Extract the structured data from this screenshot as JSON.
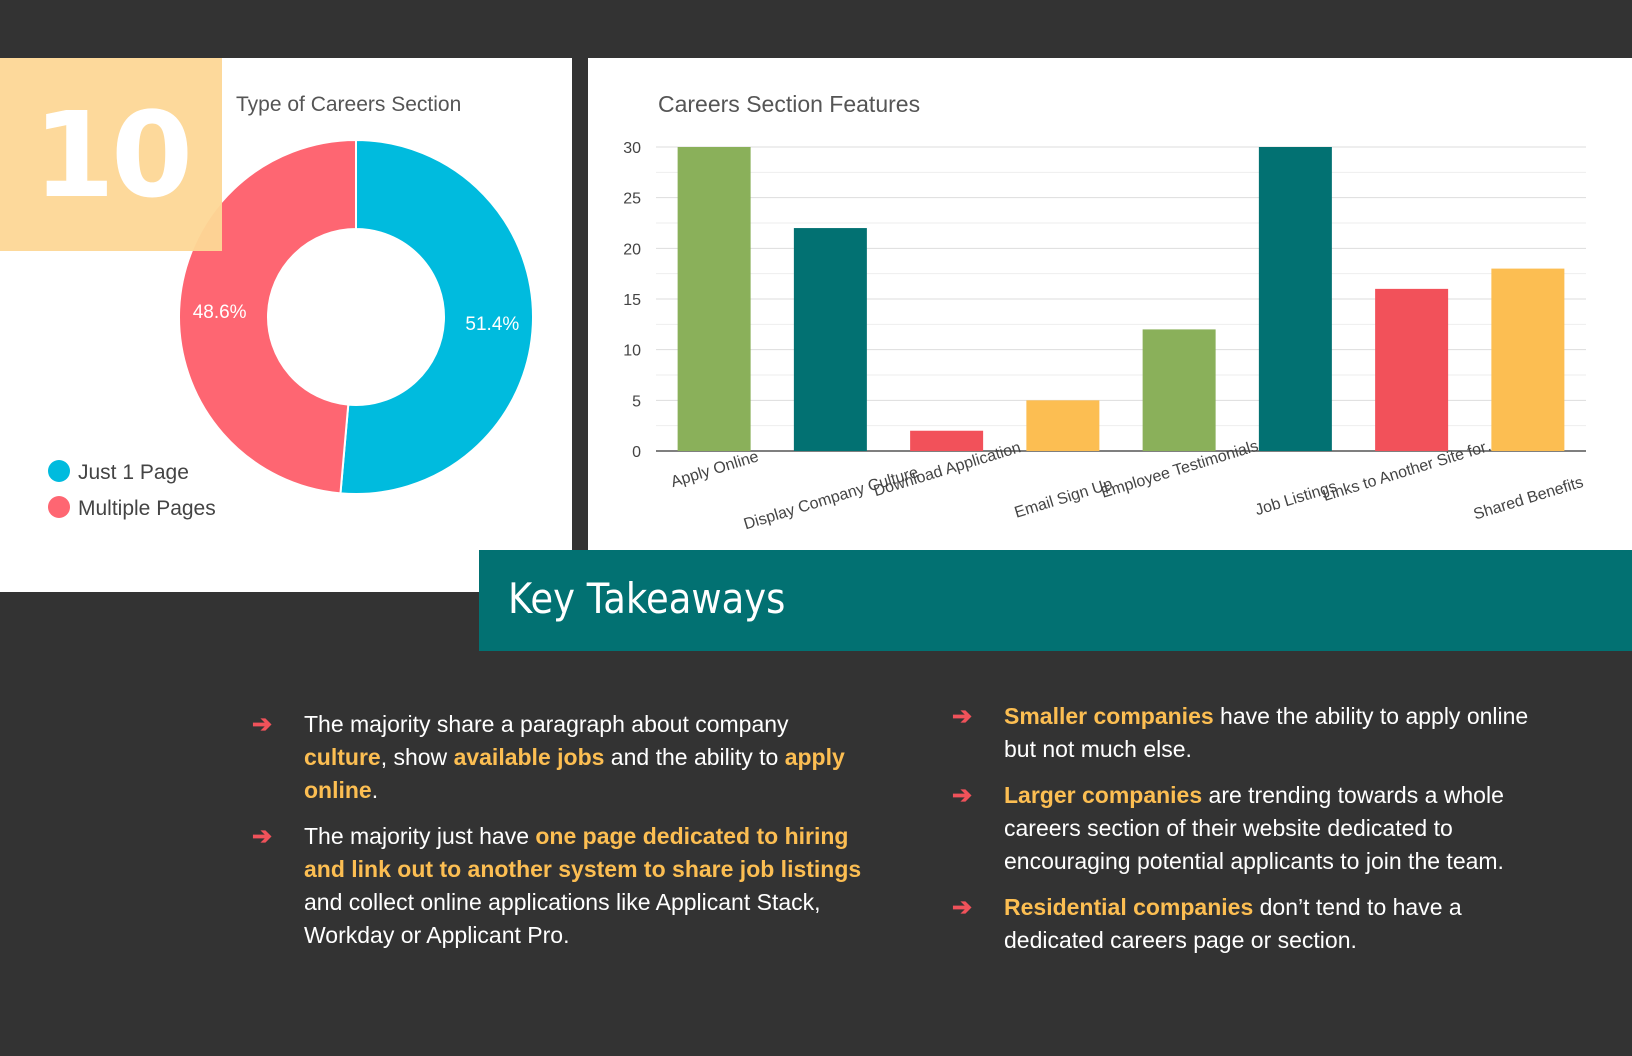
{
  "badge": {
    "number": "10"
  },
  "chart_data": [
    {
      "type": "pie",
      "title": "Type of Careers Section",
      "categories": [
        "Just 1 Page",
        "Multiple Pages"
      ],
      "values": [
        51.4,
        48.6
      ],
      "labels": [
        "51.4%",
        "48.6%"
      ],
      "colors": [
        "#00bbde",
        "#fe6672"
      ],
      "legend": "bottom-left"
    },
    {
      "type": "bar",
      "title": "Careers Section Features",
      "categories": [
        "Apply Online",
        "Display Company Culture",
        "Download Application",
        "Email Sign Up",
        "Employee Testimonials",
        "Job Listings",
        "Links to Another Site for…",
        "Shared Benefits"
      ],
      "values": [
        30,
        22,
        2,
        5,
        12,
        30,
        16,
        18
      ],
      "colors": [
        "#8ab05a",
        "#027172",
        "#f2515a",
        "#fcbe52",
        "#8ab05a",
        "#027172",
        "#f2515a",
        "#fcbe52"
      ],
      "yticks": [
        "0",
        "5",
        "10",
        "15",
        "20",
        "25",
        "30"
      ],
      "ylim": [
        0,
        30
      ],
      "xlabel": "",
      "ylabel": ""
    }
  ],
  "takeaways": {
    "heading": "Key Takeaways",
    "left": [
      [
        {
          "t": "The majority share a paragraph about company "
        },
        {
          "t": "culture",
          "hl": true
        },
        {
          "t": ", show "
        },
        {
          "t": "available jobs",
          "hl": true
        },
        {
          "t": " and the ability to "
        },
        {
          "t": "apply online",
          "hl": true
        },
        {
          "t": "."
        }
      ],
      [
        {
          "t": "The majority just have "
        },
        {
          "t": "one page dedicated to hiring and link out to another system to share job listings",
          "hl": true
        },
        {
          "t": " and collect online applications like Applicant Stack, Workday or Applicant Pro."
        }
      ]
    ],
    "right": [
      [
        {
          "t": "Smaller companies",
          "hl": true
        },
        {
          "t": " have the ability to apply online but not much else."
        }
      ],
      [
        {
          "t": "Larger companies",
          "hl": true
        },
        {
          "t": " are trending towards a whole careers section of their website dedicated to encouraging potential applicants to join the team."
        }
      ],
      [
        {
          "t": "Residential companies",
          "hl": true
        },
        {
          "t": " don’t tend to have a dedicated careers page or section."
        }
      ]
    ]
  }
}
